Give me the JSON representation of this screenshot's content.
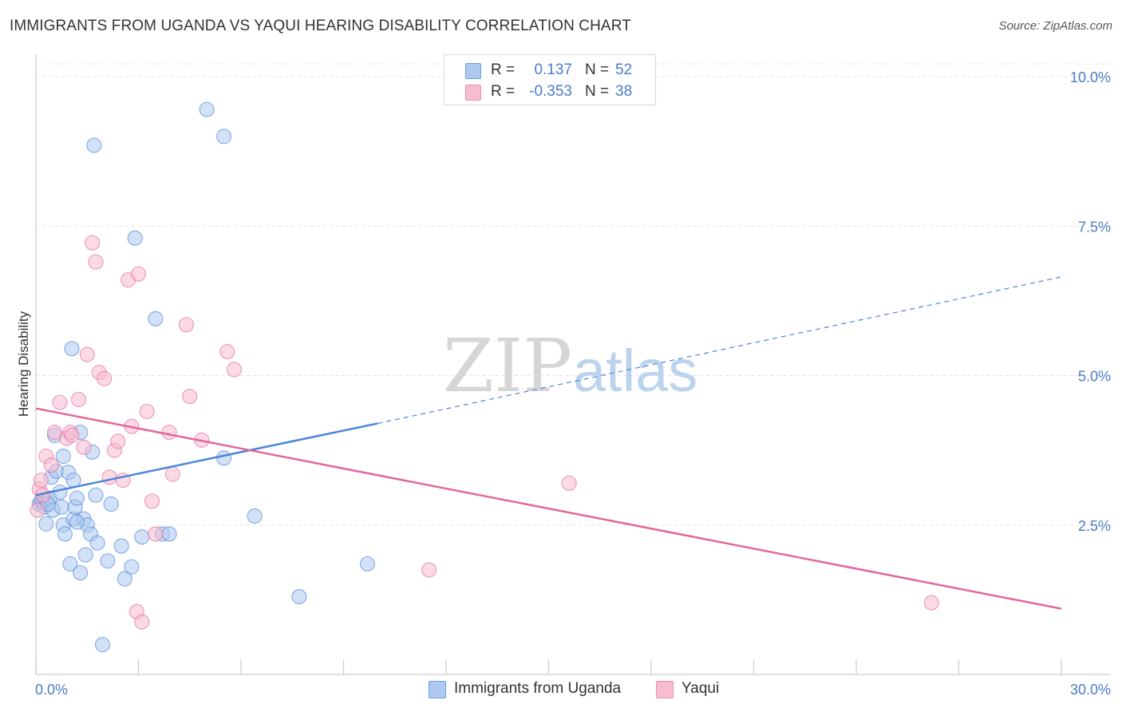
{
  "title": "IMMIGRANTS FROM UGANDA VS YAQUI HEARING DISABILITY CORRELATION CHART",
  "source": "Source: ZipAtlas.com",
  "watermark": {
    "zip": "ZIP",
    "atlas": "atlas"
  },
  "legend": {
    "rows": [
      {
        "r_label": "R =",
        "r_value": "0.137",
        "n_label": "N =",
        "n_value": "52",
        "fill": "#aec8f0",
        "stroke": "#6f9ee0"
      },
      {
        "r_label": "R =",
        "r_value": "-0.353",
        "n_label": "N =",
        "n_value": "38",
        "fill": "#f7bcd0",
        "stroke": "#ec8fae"
      }
    ]
  },
  "bottom_legend": [
    {
      "label": "Immigrants from Uganda",
      "fill": "#aec8f0",
      "stroke": "#6f9ee0"
    },
    {
      "label": "Yaqui",
      "fill": "#f7bcd0",
      "stroke": "#ec8fae"
    }
  ],
  "chart_data": {
    "type": "scatter",
    "title": "IMMIGRANTS FROM UGANDA VS YAQUI HEARING DISABILITY CORRELATION CHART",
    "xlabel": "",
    "ylabel": "Hearing Disability",
    "xlim": [
      0,
      30
    ],
    "ylim": [
      0,
      10.5
    ],
    "x_tick_labels": [
      "0.0%",
      "30.0%"
    ],
    "y_ticks": [
      2.5,
      5.0,
      7.5,
      10.0
    ],
    "y_tick_labels": [
      "2.5%",
      "5.0%",
      "7.5%",
      "10.0%"
    ],
    "grid": true,
    "series": [
      {
        "name": "Immigrants from Uganda",
        "color": "#4a86d8",
        "fill": "#aec8f0",
        "trend": {
          "x0": 0,
          "y0": 3.0,
          "x1": 10.0,
          "y1": 4.2,
          "x_dash_end": 30,
          "y_dash_end": 6.65
        },
        "points": [
          [
            0.1,
            2.85
          ],
          [
            0.15,
            2.9
          ],
          [
            0.2,
            2.88
          ],
          [
            0.25,
            2.8
          ],
          [
            0.3,
            2.52
          ],
          [
            0.3,
            2.9
          ],
          [
            0.4,
            2.95
          ],
          [
            0.45,
            3.3
          ],
          [
            0.5,
            2.75
          ],
          [
            0.55,
            4.0
          ],
          [
            0.6,
            3.4
          ],
          [
            0.7,
            3.05
          ],
          [
            0.75,
            2.8
          ],
          [
            0.8,
            2.5
          ],
          [
            0.8,
            3.65
          ],
          [
            0.85,
            2.35
          ],
          [
            0.95,
            3.38
          ],
          [
            1.0,
            1.85
          ],
          [
            1.05,
            5.45
          ],
          [
            1.1,
            3.25
          ],
          [
            1.1,
            2.6
          ],
          [
            1.15,
            2.8
          ],
          [
            1.2,
            2.95
          ],
          [
            1.3,
            1.7
          ],
          [
            1.3,
            4.05
          ],
          [
            1.4,
            2.6
          ],
          [
            1.45,
            2.0
          ],
          [
            1.5,
            2.5
          ],
          [
            1.6,
            2.35
          ],
          [
            1.65,
            3.72
          ],
          [
            1.7,
            8.85
          ],
          [
            1.75,
            3.0
          ],
          [
            1.8,
            2.2
          ],
          [
            1.95,
            0.5
          ],
          [
            2.1,
            1.9
          ],
          [
            2.5,
            2.15
          ],
          [
            2.6,
            1.6
          ],
          [
            2.8,
            1.8
          ],
          [
            2.9,
            7.3
          ],
          [
            3.1,
            2.3
          ],
          [
            3.7,
            2.35
          ],
          [
            3.9,
            2.35
          ],
          [
            3.5,
            5.95
          ],
          [
            5.0,
            9.45
          ],
          [
            5.5,
            9.0
          ],
          [
            5.5,
            3.62
          ],
          [
            6.4,
            2.65
          ],
          [
            7.7,
            1.3
          ],
          [
            9.7,
            1.85
          ],
          [
            2.2,
            2.85
          ],
          [
            0.35,
            2.85
          ],
          [
            1.2,
            2.55
          ]
        ]
      },
      {
        "name": "Yaqui",
        "color": "#e2689a",
        "fill": "#f7bcd0",
        "trend": {
          "x0": 0,
          "y0": 4.45,
          "x1": 30,
          "y1": 1.1
        },
        "points": [
          [
            0.05,
            2.75
          ],
          [
            0.1,
            3.1
          ],
          [
            0.15,
            3.25
          ],
          [
            0.2,
            3.0
          ],
          [
            0.3,
            3.65
          ],
          [
            0.45,
            3.5
          ],
          [
            0.55,
            4.05
          ],
          [
            0.7,
            4.55
          ],
          [
            0.9,
            3.95
          ],
          [
            1.0,
            4.05
          ],
          [
            1.05,
            4.0
          ],
          [
            1.25,
            4.6
          ],
          [
            1.4,
            3.8
          ],
          [
            1.5,
            5.35
          ],
          [
            1.65,
            7.22
          ],
          [
            1.75,
            6.9
          ],
          [
            1.85,
            5.05
          ],
          [
            2.0,
            4.95
          ],
          [
            2.15,
            3.3
          ],
          [
            2.3,
            3.75
          ],
          [
            2.4,
            3.9
          ],
          [
            2.55,
            3.25
          ],
          [
            2.7,
            6.6
          ],
          [
            2.8,
            4.15
          ],
          [
            3.0,
            6.7
          ],
          [
            3.25,
            4.4
          ],
          [
            3.4,
            2.9
          ],
          [
            3.5,
            2.35
          ],
          [
            3.9,
            4.05
          ],
          [
            4.0,
            3.35
          ],
          [
            4.4,
            5.85
          ],
          [
            4.5,
            4.65
          ],
          [
            4.85,
            3.92
          ],
          [
            5.6,
            5.4
          ],
          [
            5.8,
            5.1
          ],
          [
            11.5,
            1.75
          ],
          [
            15.6,
            3.2
          ],
          [
            26.2,
            1.2
          ]
        ],
        "extra_points": [
          [
            2.95,
            1.05
          ],
          [
            3.1,
            0.88
          ]
        ]
      }
    ]
  }
}
